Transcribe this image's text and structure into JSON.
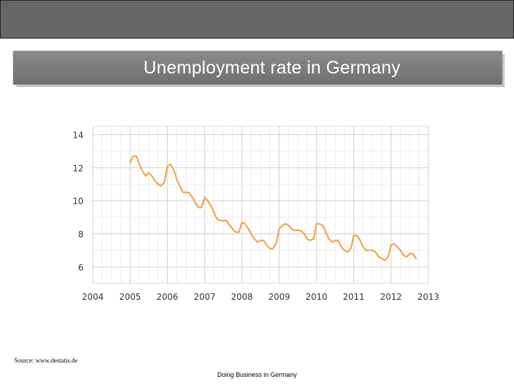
{
  "slide": {
    "title": "Unemployment rate in Germany",
    "source": "Source: www.destatis.de",
    "footer": "Doing Business in Germany"
  },
  "colors": {
    "top_bar": "#666666",
    "title_box": "#7a7a7a",
    "line": "#E8A94A",
    "grid": "#dddddd"
  },
  "chart_data": {
    "type": "line",
    "title": "",
    "xlabel": "",
    "ylabel": "",
    "xlim": [
      2004,
      2013
    ],
    "ylim": [
      5,
      14.5
    ],
    "x_ticks": [
      "2004",
      "2005",
      "2006",
      "2007",
      "2008",
      "2009",
      "2010",
      "2011",
      "2012",
      "2013"
    ],
    "y_ticks": [
      "14",
      "12",
      "10",
      "8",
      "6"
    ],
    "grid": true,
    "legend": "none",
    "series": [
      {
        "name": "",
        "x": [
          2005.0,
          2005.08,
          2005.17,
          2005.25,
          2005.33,
          2005.42,
          2005.5,
          2005.58,
          2005.67,
          2005.75,
          2005.83,
          2005.92,
          2006.0,
          2006.08,
          2006.17,
          2006.25,
          2006.33,
          2006.42,
          2006.5,
          2006.58,
          2006.67,
          2006.75,
          2006.83,
          2006.92,
          2007.0,
          2007.08,
          2007.17,
          2007.25,
          2007.33,
          2007.42,
          2007.5,
          2007.58,
          2007.67,
          2007.75,
          2007.83,
          2007.92,
          2008.0,
          2008.08,
          2008.17,
          2008.25,
          2008.33,
          2008.42,
          2008.5,
          2008.58,
          2008.67,
          2008.75,
          2008.83,
          2008.92,
          2009.0,
          2009.08,
          2009.17,
          2009.25,
          2009.33,
          2009.42,
          2009.5,
          2009.58,
          2009.67,
          2009.75,
          2009.83,
          2009.92,
          2010.0,
          2010.08,
          2010.17,
          2010.25,
          2010.33,
          2010.42,
          2010.5,
          2010.58,
          2010.67,
          2010.75,
          2010.83,
          2010.92,
          2011.0,
          2011.08,
          2011.17,
          2011.25,
          2011.33,
          2011.42,
          2011.5,
          2011.58,
          2011.67,
          2011.75,
          2011.83,
          2011.92,
          2012.0,
          2012.08,
          2012.17,
          2012.25,
          2012.33,
          2012.42,
          2012.5,
          2012.58,
          2012.67
        ],
        "values": [
          12.3,
          12.7,
          12.7,
          12.2,
          11.8,
          11.5,
          11.7,
          11.5,
          11.2,
          11.0,
          10.9,
          11.1,
          12.1,
          12.2,
          11.9,
          11.3,
          10.9,
          10.5,
          10.5,
          10.5,
          10.2,
          9.9,
          9.6,
          9.6,
          10.2,
          10.0,
          9.7,
          9.3,
          8.9,
          8.8,
          8.8,
          8.8,
          8.5,
          8.3,
          8.1,
          8.1,
          8.7,
          8.6,
          8.3,
          8.0,
          7.7,
          7.5,
          7.6,
          7.6,
          7.3,
          7.1,
          7.1,
          7.4,
          8.3,
          8.5,
          8.6,
          8.5,
          8.3,
          8.2,
          8.2,
          8.2,
          8.0,
          7.7,
          7.6,
          7.7,
          8.6,
          8.6,
          8.5,
          8.1,
          7.7,
          7.5,
          7.6,
          7.6,
          7.2,
          7.0,
          6.9,
          7.1,
          7.9,
          7.9,
          7.6,
          7.2,
          7.0,
          7.0,
          7.0,
          6.9,
          6.6,
          6.5,
          6.4,
          6.6,
          7.3,
          7.4,
          7.2,
          7.0,
          6.7,
          6.6,
          6.8,
          6.8,
          6.5
        ]
      }
    ]
  }
}
